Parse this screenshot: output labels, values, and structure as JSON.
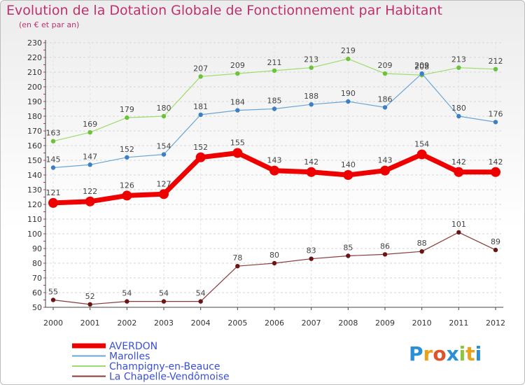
{
  "chart_data": {
    "type": "line",
    "title": "Evolution de la Dotation Globale de Fonctionnement par Habitant",
    "subtitle": "(en € et par an)",
    "xlabel": "",
    "ylabel": "",
    "categories": [
      "2000",
      "2001",
      "2002",
      "2003",
      "2004",
      "2005",
      "2006",
      "2007",
      "2008",
      "2009",
      "2010",
      "2011",
      "2012"
    ],
    "ylim": [
      50,
      230
    ],
    "ytick_step": 10,
    "grid": true,
    "legend": "bottom-left",
    "series": [
      {
        "name": "La Chapelle-Vendômoise",
        "color": "#7a1f1f",
        "values": [
          55,
          52,
          54,
          54,
          54,
          78,
          80,
          83,
          85,
          86,
          88,
          101,
          89
        ]
      },
      {
        "name": "Champigny-en-Beauce",
        "color": "#8fd45a",
        "values": [
          163,
          169,
          179,
          180,
          207,
          209,
          211,
          213,
          219,
          209,
          208,
          213,
          212
        ]
      },
      {
        "name": "Marolles",
        "color": "#5b9bd5",
        "values": [
          145,
          147,
          152,
          154,
          181,
          184,
          185,
          188,
          190,
          186,
          209,
          180,
          176
        ]
      },
      {
        "name": "AVERDON",
        "color": "#ee0000",
        "values": [
          121,
          122,
          126,
          127,
          152,
          155,
          143,
          142,
          140,
          143,
          154,
          142,
          142
        ]
      }
    ]
  },
  "legend_items": [
    {
      "label": "AVERDON",
      "color": "#3a4fd8"
    },
    {
      "label": "Marolles",
      "color": "#3a4fd8"
    },
    {
      "label": "Champigny-en-Beauce",
      "color": "#3a4fd8"
    },
    {
      "label": "La Chapelle-Vendômoise",
      "color": "#3a4fd8"
    }
  ],
  "logo": {
    "text": "Proxiti",
    "colors": [
      "#2a8fd6",
      "#e8a21c",
      "#e0522c",
      "#2a8fd6",
      "#8cc63f",
      "#e8a21c",
      "#2a8fd6"
    ]
  }
}
